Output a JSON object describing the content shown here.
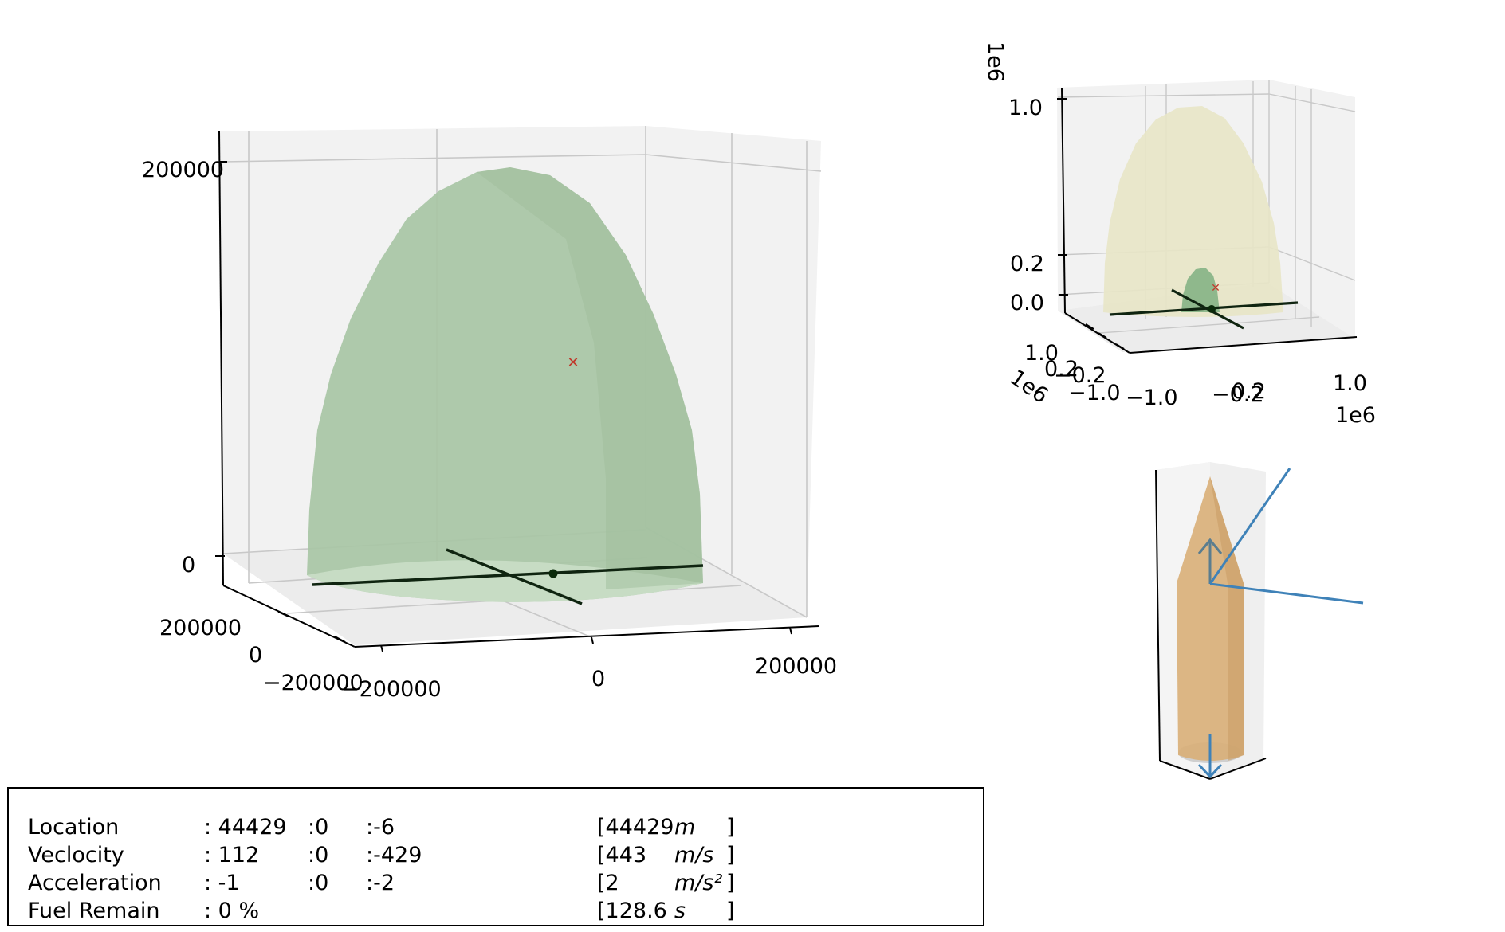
{
  "chart_data": [
    {
      "type": "3d-surface",
      "panel": "main",
      "z_ticks": [
        "200000",
        "0"
      ],
      "y_ticks": [
        "200000",
        "0",
        "−200000"
      ],
      "x_ticks": [
        "−200000",
        "0",
        "200000"
      ],
      "surface": {
        "shape": "paraboloid dome",
        "color": "#a8c5a5",
        "peak_z": 200000
      },
      "marker_target": {
        "symbol": "x",
        "color": "#c0392b"
      },
      "marker_vehicle": {
        "symbol": "dot",
        "color": "#0a2a0a"
      }
    },
    {
      "type": "3d-surface",
      "panel": "overview",
      "offset_label": "1e6",
      "z_ticks": [
        "1.0",
        "0.2",
        "0.0"
      ],
      "y_ticks": [
        "1.0",
        "0.2",
        "−0.2",
        "−1.0"
      ],
      "x_ticks": [
        "−1.0",
        "−0.2",
        "0.2",
        "1.0"
      ],
      "y_offset_label": "1e6",
      "x_offset_label": "1e6",
      "surfaces": [
        {
          "name": "outer",
          "color": "#e8e6c6"
        },
        {
          "name": "inner",
          "color": "#8fb88c"
        }
      ]
    },
    {
      "type": "3d-attitude",
      "panel": "attitude",
      "body_color": "#d9b07a",
      "vector_color": "#3f82b8"
    }
  ],
  "info": {
    "rows": [
      {
        "label": "Location",
        "v1": ": 44429",
        "v2": ":0",
        "v3": ":-6",
        "mag": "[44429",
        "unit": "m",
        "close": "]"
      },
      {
        "label": "Veclocity",
        "v1": ": 112",
        "v2": ":0",
        "v3": ":-429",
        "mag": "[443",
        "unit": "m/s",
        "close": "]"
      },
      {
        "label": "Acceleration",
        "v1": ": -1",
        "v2": ":0",
        "v3": ":-2",
        "mag": "[2",
        "unit": "m/s²",
        "close": "]"
      },
      {
        "label": "Fuel Remain",
        "v1": ": 0 %",
        "v2": "",
        "v3": "",
        "mag": "[128.6",
        "unit": "s",
        "close": "]"
      }
    ]
  }
}
